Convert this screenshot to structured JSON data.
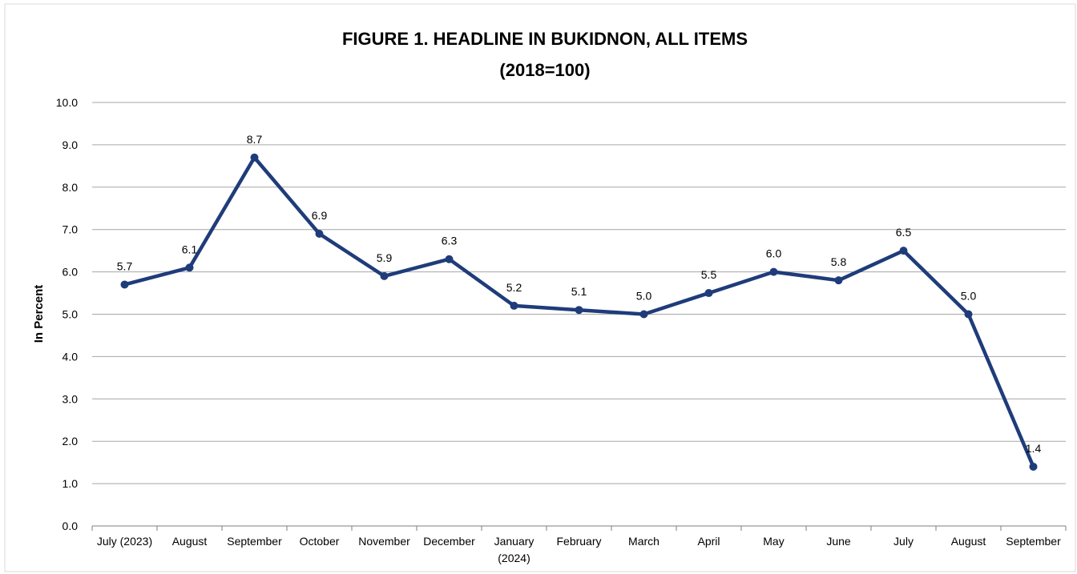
{
  "chart_data": {
    "type": "line",
    "title": "FIGURE 1. HEADLINE IN BUKIDNON, ALL ITEMS",
    "subtitle": "(2018=100)",
    "xlabel": "",
    "ylabel": "In Percent",
    "ylim": [
      0,
      10
    ],
    "yticks": [
      "0.0",
      "1.0",
      "2.0",
      "3.0",
      "4.0",
      "5.0",
      "6.0",
      "7.0",
      "8.0",
      "9.0",
      "10.0"
    ],
    "grid": true,
    "legend": "none",
    "categories": [
      [
        "July (2023)"
      ],
      [
        "August"
      ],
      [
        "September"
      ],
      [
        "October"
      ],
      [
        "November"
      ],
      [
        "December"
      ],
      [
        "January",
        "(2024)"
      ],
      [
        "February"
      ],
      [
        "March"
      ],
      [
        "April"
      ],
      [
        "May"
      ],
      [
        "June"
      ],
      [
        "July"
      ],
      [
        "August"
      ],
      [
        "September"
      ]
    ],
    "series": [
      {
        "values": [
          5.7,
          6.1,
          8.7,
          6.9,
          5.9,
          6.3,
          5.2,
          5.1,
          5.0,
          5.5,
          6.0,
          5.8,
          6.5,
          5.0,
          1.4
        ],
        "labels": [
          "5.7",
          "6.1",
          "8.7",
          "6.9",
          "5.9",
          "6.3",
          "5.2",
          "5.1",
          "5.0",
          "5.5",
          "6.0",
          "5.8",
          "6.5",
          "5.0",
          "1.4"
        ],
        "color": "#1f3c7a"
      }
    ],
    "colors": {
      "grid": "#a6a6a6",
      "axis": "#7f7f7f",
      "frame": "#bfbfbf"
    }
  }
}
